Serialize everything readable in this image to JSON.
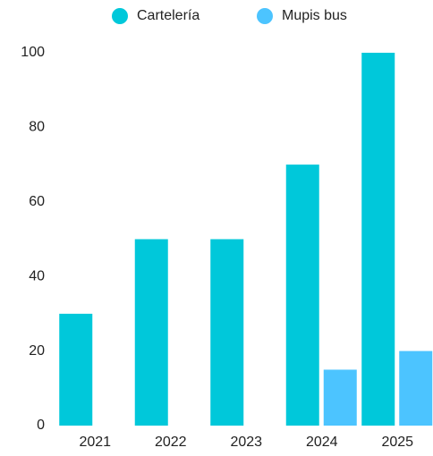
{
  "chart_data": {
    "type": "bar",
    "categories": [
      "2021",
      "2022",
      "2023",
      "2024",
      "2025"
    ],
    "series": [
      {
        "name": "Cartelería",
        "color": "#00c8da",
        "values": [
          30,
          50,
          50,
          70,
          100
        ]
      },
      {
        "name": "Mupis bus",
        "color": "#4cc4ff",
        "values": [
          0,
          0,
          0,
          15,
          20
        ]
      }
    ],
    "ylim": [
      0,
      100
    ],
    "yticks": [
      0,
      20,
      40,
      60,
      80,
      100
    ],
    "grid": false,
    "legend": "top"
  }
}
